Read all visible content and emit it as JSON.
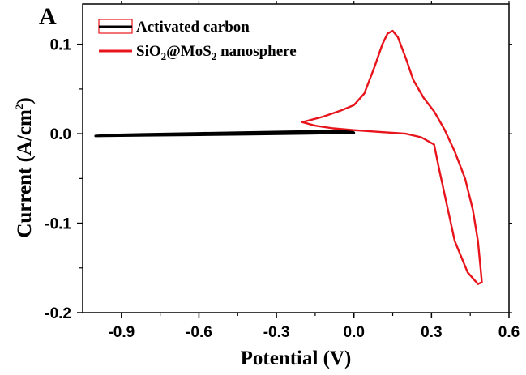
{
  "chart_data": {
    "type": "line",
    "panel_label": "A",
    "xlabel": "Potential (V)",
    "ylabel": {
      "main": "Current (A/cm",
      "superscript": "2",
      "close": ")"
    },
    "xlim": [
      -1.05,
      0.6
    ],
    "ylim": [
      -0.2,
      0.145
    ],
    "xticks": [
      -0.9,
      -0.6,
      -0.3,
      0.0,
      0.3,
      0.6
    ],
    "xtick_labels": [
      "-0.9",
      "-0.6",
      "-0.3",
      "0.0",
      "0.3",
      "0.6"
    ],
    "yticks": [
      -0.2,
      -0.1,
      0.0,
      0.1
    ],
    "ytick_labels": [
      "-0.2",
      "-0.1",
      "0.0",
      "0.1"
    ],
    "legend_position": "top-left",
    "series": [
      {
        "name": "Activated carbon",
        "legend_parts": [
          {
            "text": "Activated carbon",
            "sub": false
          }
        ],
        "color": "#000000",
        "points": [
          [
            -1.0,
            -0.0025
          ],
          [
            -0.8,
            -0.0018
          ],
          [
            -0.6,
            -0.0012
          ],
          [
            -0.4,
            -0.0005
          ],
          [
            -0.2,
            0.0002
          ],
          [
            0.0,
            0.0012
          ],
          [
            -0.02,
            0.0035
          ],
          [
            -0.2,
            0.0025
          ],
          [
            -0.4,
            0.0015
          ],
          [
            -0.6,
            0.0005
          ],
          [
            -0.8,
            -0.0006
          ],
          [
            -0.95,
            -0.0015
          ],
          [
            -1.0,
            -0.0025
          ]
        ]
      },
      {
        "name": "SiO2@MoS2 nanosphere",
        "legend_parts": [
          {
            "text": "SiO",
            "sub": false
          },
          {
            "text": "2",
            "sub": true
          },
          {
            "text": "@MoS",
            "sub": false
          },
          {
            "text": "2",
            "sub": true
          },
          {
            "text": " nanosphere",
            "sub": false
          }
        ],
        "color": "#e8141c",
        "points": [
          [
            -0.2,
            0.013
          ],
          [
            -0.12,
            0.019
          ],
          [
            -0.05,
            0.026
          ],
          [
            0.0,
            0.032
          ],
          [
            0.04,
            0.045
          ],
          [
            0.08,
            0.075
          ],
          [
            0.11,
            0.1
          ],
          [
            0.13,
            0.112
          ],
          [
            0.15,
            0.115
          ],
          [
            0.17,
            0.108
          ],
          [
            0.2,
            0.085
          ],
          [
            0.23,
            0.06
          ],
          [
            0.27,
            0.04
          ],
          [
            0.31,
            0.025
          ],
          [
            0.35,
            0.005
          ],
          [
            0.39,
            -0.02
          ],
          [
            0.43,
            -0.05
          ],
          [
            0.46,
            -0.085
          ],
          [
            0.48,
            -0.12
          ],
          [
            0.49,
            -0.15
          ],
          [
            0.495,
            -0.166
          ],
          [
            0.48,
            -0.168
          ],
          [
            0.44,
            -0.155
          ],
          [
            0.39,
            -0.12
          ],
          [
            0.36,
            -0.08
          ],
          [
            0.33,
            -0.04
          ],
          [
            0.31,
            -0.012
          ],
          [
            0.26,
            -0.004
          ],
          [
            0.2,
            0.0
          ],
          [
            0.1,
            0.002
          ],
          [
            0.0,
            0.004
          ],
          [
            -0.08,
            0.006
          ],
          [
            -0.15,
            0.009
          ],
          [
            -0.2,
            0.013
          ]
        ]
      }
    ]
  }
}
